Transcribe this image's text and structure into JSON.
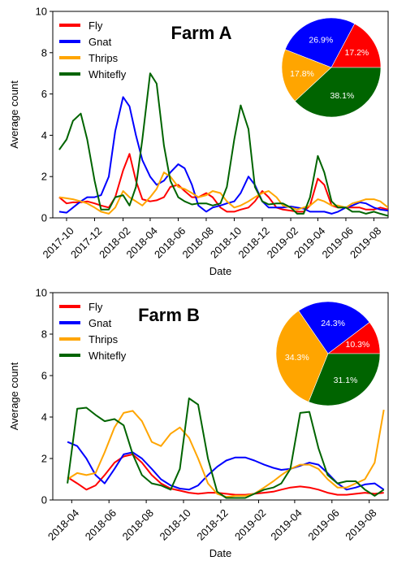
{
  "figure": {
    "colors": {
      "Fly": "#ff0000",
      "Gnat": "#0000ff",
      "Thrips": "#ffa500",
      "Whitefly": "#006400"
    }
  },
  "chart_data": [
    {
      "type": "line",
      "title": "Farm A",
      "xlabel": "Date",
      "ylabel": "Average count",
      "ylim": [
        0,
        10
      ],
      "yticks": [
        0,
        2,
        4,
        6,
        8,
        10
      ],
      "x_start": "2017-09",
      "x_end": "2019-09",
      "xticks": [
        "2017-10",
        "2017-12",
        "2018-02",
        "2018-04",
        "2018-06",
        "2018-08",
        "2018-10",
        "2018-12",
        "2019-02",
        "2019-04",
        "2019-06",
        "2019-08"
      ],
      "legend_position": "top-left",
      "series": [
        {
          "name": "Fly",
          "color": "#ff0000",
          "x": [
            "2017-09-15",
            "2017-10-01",
            "2017-10-15",
            "2017-11-01",
            "2017-11-15",
            "2017-12-01",
            "2017-12-15",
            "2018-01-01",
            "2018-01-15",
            "2018-02-01",
            "2018-02-15",
            "2018-03-01",
            "2018-03-15",
            "2018-04-01",
            "2018-04-15",
            "2018-05-01",
            "2018-05-15",
            "2018-06-01",
            "2018-06-15",
            "2018-07-01",
            "2018-07-15",
            "2018-08-01",
            "2018-08-15",
            "2018-09-01",
            "2018-09-15",
            "2018-10-01",
            "2018-10-15",
            "2018-11-01",
            "2018-11-15",
            "2018-12-01",
            "2018-12-15",
            "2019-01-01",
            "2019-01-15",
            "2019-02-01",
            "2019-02-15",
            "2019-03-01",
            "2019-03-15",
            "2019-04-01",
            "2019-04-15",
            "2019-05-01",
            "2019-05-15",
            "2019-06-01",
            "2019-06-15",
            "2019-07-01",
            "2019-07-15",
            "2019-08-01",
            "2019-08-15",
            "2019-09-01"
          ],
          "y": [
            1.0,
            0.7,
            0.75,
            0.75,
            0.8,
            0.7,
            0.6,
            0.5,
            1.0,
            2.3,
            3.1,
            1.8,
            0.9,
            0.8,
            0.85,
            1.0,
            1.5,
            1.6,
            1.3,
            1.0,
            1.0,
            1.2,
            1.0,
            0.5,
            0.3,
            0.3,
            0.4,
            0.5,
            0.8,
            1.3,
            1.0,
            0.5,
            0.4,
            0.35,
            0.3,
            0.3,
            0.6,
            1.9,
            1.6,
            0.6,
            0.5,
            0.5,
            0.5,
            0.5,
            0.4,
            0.4,
            0.5,
            0.4
          ]
        },
        {
          "name": "Gnat",
          "color": "#0000ff",
          "x": [
            "2017-09-15",
            "2017-10-01",
            "2017-10-15",
            "2017-11-01",
            "2017-11-15",
            "2017-12-01",
            "2017-12-15",
            "2018-01-01",
            "2018-01-15",
            "2018-02-01",
            "2018-02-15",
            "2018-03-01",
            "2018-03-15",
            "2018-04-01",
            "2018-04-15",
            "2018-05-01",
            "2018-05-15",
            "2018-06-01",
            "2018-06-15",
            "2018-07-01",
            "2018-07-15",
            "2018-08-01",
            "2018-08-15",
            "2018-09-01",
            "2018-09-15",
            "2018-10-01",
            "2018-10-15",
            "2018-11-01",
            "2018-11-15",
            "2018-12-01",
            "2018-12-15",
            "2019-01-01",
            "2019-01-15",
            "2019-02-01",
            "2019-02-15",
            "2019-03-01",
            "2019-03-15",
            "2019-04-01",
            "2019-04-15",
            "2019-05-01",
            "2019-05-15",
            "2019-06-01",
            "2019-06-15",
            "2019-07-01",
            "2019-07-15",
            "2019-08-01",
            "2019-08-15",
            "2019-09-01"
          ],
          "y": [
            0.3,
            0.25,
            0.5,
            0.8,
            1.0,
            1.0,
            1.1,
            2.0,
            4.2,
            5.85,
            5.4,
            4.0,
            2.8,
            2.0,
            1.6,
            1.8,
            2.2,
            2.6,
            2.4,
            1.6,
            0.6,
            0.3,
            0.5,
            0.6,
            0.7,
            0.8,
            1.2,
            2.0,
            1.6,
            0.8,
            0.5,
            0.5,
            0.5,
            0.55,
            0.5,
            0.45,
            0.3,
            0.3,
            0.3,
            0.2,
            0.3,
            0.5,
            0.6,
            0.75,
            0.7,
            0.5,
            0.4,
            0.35
          ]
        },
        {
          "name": "Thrips",
          "color": "#ffa500",
          "x": [
            "2017-09-15",
            "2017-10-01",
            "2017-10-15",
            "2017-11-01",
            "2017-11-15",
            "2017-12-01",
            "2017-12-15",
            "2018-01-01",
            "2018-01-15",
            "2018-02-01",
            "2018-02-15",
            "2018-03-01",
            "2018-03-15",
            "2018-04-01",
            "2018-04-15",
            "2018-05-01",
            "2018-05-15",
            "2018-06-01",
            "2018-06-15",
            "2018-07-01",
            "2018-07-15",
            "2018-08-01",
            "2018-08-15",
            "2018-09-01",
            "2018-09-15",
            "2018-10-01",
            "2018-10-15",
            "2018-11-01",
            "2018-11-15",
            "2018-12-01",
            "2018-12-15",
            "2019-01-01",
            "2019-01-15",
            "2019-02-01",
            "2019-02-15",
            "2019-03-01",
            "2019-03-15",
            "2019-04-01",
            "2019-04-15",
            "2019-05-01",
            "2019-05-15",
            "2019-06-01",
            "2019-06-15",
            "2019-07-01",
            "2019-07-15",
            "2019-08-01",
            "2019-08-15",
            "2019-09-01"
          ],
          "y": [
            1.0,
            0.95,
            0.9,
            0.8,
            0.7,
            0.5,
            0.3,
            0.2,
            0.5,
            1.3,
            1.0,
            0.8,
            0.6,
            1.0,
            1.4,
            2.2,
            2.0,
            1.5,
            1.4,
            1.2,
            1.0,
            1.1,
            1.3,
            1.2,
            0.8,
            0.5,
            0.6,
            0.8,
            1.0,
            1.2,
            1.3,
            1.0,
            0.6,
            0.5,
            0.4,
            0.5,
            0.6,
            0.9,
            0.8,
            0.6,
            0.6,
            0.5,
            0.7,
            0.8,
            0.9,
            0.9,
            0.8,
            0.5
          ]
        },
        {
          "name": "Whitefly",
          "color": "#006400",
          "x": [
            "2017-09-15",
            "2017-10-01",
            "2017-10-15",
            "2017-11-01",
            "2017-11-15",
            "2017-12-01",
            "2017-12-15",
            "2018-01-01",
            "2018-01-15",
            "2018-02-01",
            "2018-02-15",
            "2018-03-01",
            "2018-03-15",
            "2018-04-01",
            "2018-04-15",
            "2018-05-01",
            "2018-05-15",
            "2018-06-01",
            "2018-06-15",
            "2018-07-01",
            "2018-07-15",
            "2018-08-01",
            "2018-08-15",
            "2018-09-01",
            "2018-09-15",
            "2018-10-01",
            "2018-10-15",
            "2018-11-01",
            "2018-11-15",
            "2018-12-01",
            "2018-12-15",
            "2019-01-01",
            "2019-01-15",
            "2019-02-01",
            "2019-02-15",
            "2019-03-01",
            "2019-03-15",
            "2019-04-01",
            "2019-04-15",
            "2019-05-01",
            "2019-05-15",
            "2019-06-01",
            "2019-06-15",
            "2019-07-01",
            "2019-07-15",
            "2019-08-01",
            "2019-08-15",
            "2019-09-01"
          ],
          "y": [
            3.3,
            3.8,
            4.7,
            5.05,
            3.8,
            1.8,
            0.4,
            0.4,
            1.0,
            1.1,
            0.6,
            1.5,
            3.8,
            7.0,
            6.5,
            3.5,
            1.8,
            1.0,
            0.8,
            0.65,
            0.7,
            0.7,
            0.6,
            0.7,
            1.5,
            3.8,
            5.45,
            4.3,
            1.5,
            0.8,
            0.65,
            0.7,
            0.7,
            0.5,
            0.2,
            0.2,
            1.0,
            3.0,
            2.2,
            0.8,
            0.5,
            0.5,
            0.3,
            0.3,
            0.2,
            0.3,
            0.2,
            0.1
          ]
        }
      ],
      "pie": {
        "slices": [
          {
            "name": "Fly",
            "value": 17.2,
            "label": "17.2%",
            "color": "#ff0000"
          },
          {
            "name": "Gnat",
            "value": 26.9,
            "label": "26.9%",
            "color": "#0000ff"
          },
          {
            "name": "Thrips",
            "value": 17.8,
            "label": "17.8%",
            "color": "#ffa500"
          },
          {
            "name": "Whitefly",
            "value": 38.1,
            "label": "38.1%",
            "color": "#006400"
          }
        ]
      }
    },
    {
      "type": "line",
      "title": "Farm B",
      "xlabel": "Date",
      "ylabel": "Average count",
      "ylim": [
        0,
        10
      ],
      "yticks": [
        0,
        2,
        4,
        6,
        8,
        10
      ],
      "x_start": "2018-03",
      "x_end": "2019-09",
      "xticks": [
        "2018-04",
        "2018-06",
        "2018-08",
        "2018-10",
        "2018-12",
        "2019-02",
        "2019-04",
        "2019-06",
        "2019-08"
      ],
      "legend_position": "top-left",
      "series": [
        {
          "name": "Fly",
          "color": "#ff0000",
          "x": [
            "2018-03-25",
            "2018-04-10",
            "2018-04-25",
            "2018-05-10",
            "2018-05-25",
            "2018-06-10",
            "2018-06-25",
            "2018-07-10",
            "2018-07-25",
            "2018-08-10",
            "2018-08-25",
            "2018-09-10",
            "2018-09-25",
            "2018-10-10",
            "2018-10-25",
            "2018-11-10",
            "2018-11-25",
            "2018-12-10",
            "2018-12-25",
            "2019-01-10",
            "2019-01-25",
            "2019-02-10",
            "2019-02-25",
            "2019-03-10",
            "2019-03-25",
            "2019-04-10",
            "2019-04-25",
            "2019-05-10",
            "2019-05-25",
            "2019-06-10",
            "2019-06-25",
            "2019-07-10",
            "2019-07-25",
            "2019-08-10",
            "2019-08-25"
          ],
          "y": [
            1.1,
            0.8,
            0.5,
            0.7,
            1.2,
            1.8,
            2.1,
            2.2,
            1.8,
            1.2,
            0.8,
            0.55,
            0.45,
            0.35,
            0.3,
            0.35,
            0.35,
            0.3,
            0.25,
            0.25,
            0.3,
            0.35,
            0.4,
            0.5,
            0.6,
            0.65,
            0.6,
            0.5,
            0.35,
            0.25,
            0.25,
            0.3,
            0.35,
            0.3,
            0.35
          ]
        },
        {
          "name": "Gnat",
          "color": "#0000ff",
          "x": [
            "2018-03-25",
            "2018-04-10",
            "2018-04-25",
            "2018-05-10",
            "2018-05-25",
            "2018-06-10",
            "2018-06-25",
            "2018-07-10",
            "2018-07-25",
            "2018-08-10",
            "2018-08-25",
            "2018-09-10",
            "2018-09-25",
            "2018-10-10",
            "2018-10-25",
            "2018-11-10",
            "2018-11-25",
            "2018-12-10",
            "2018-12-25",
            "2019-01-10",
            "2019-01-25",
            "2019-02-10",
            "2019-02-25",
            "2019-03-10",
            "2019-03-25",
            "2019-04-10",
            "2019-04-25",
            "2019-05-10",
            "2019-05-25",
            "2019-06-10",
            "2019-06-25",
            "2019-07-10",
            "2019-07-25",
            "2019-08-10",
            "2019-08-25"
          ],
          "y": [
            2.8,
            2.6,
            2.0,
            1.2,
            0.8,
            1.5,
            2.2,
            2.3,
            2.0,
            1.5,
            1.0,
            0.7,
            0.55,
            0.5,
            0.7,
            1.2,
            1.6,
            1.9,
            2.05,
            2.05,
            1.9,
            1.7,
            1.55,
            1.45,
            1.5,
            1.65,
            1.8,
            1.7,
            1.3,
            0.8,
            0.5,
            0.6,
            0.75,
            0.8,
            0.5
          ]
        },
        {
          "name": "Thrips",
          "color": "#ffa500",
          "x": [
            "2018-03-25",
            "2018-04-10",
            "2018-04-25",
            "2018-05-10",
            "2018-05-25",
            "2018-06-10",
            "2018-06-25",
            "2018-07-10",
            "2018-07-25",
            "2018-08-10",
            "2018-08-25",
            "2018-09-10",
            "2018-09-25",
            "2018-10-10",
            "2018-10-25",
            "2018-11-10",
            "2018-11-25",
            "2018-12-10",
            "2018-12-25",
            "2019-01-10",
            "2019-01-25",
            "2019-02-10",
            "2019-02-25",
            "2019-03-10",
            "2019-03-25",
            "2019-04-10",
            "2019-04-25",
            "2019-05-10",
            "2019-05-25",
            "2019-06-10",
            "2019-06-25",
            "2019-07-10",
            "2019-07-25",
            "2019-08-10",
            "2019-08-25"
          ],
          "y": [
            1.0,
            1.3,
            1.2,
            1.3,
            2.3,
            3.5,
            4.2,
            4.3,
            3.8,
            2.8,
            2.6,
            3.2,
            3.5,
            3.0,
            2.0,
            0.8,
            0.3,
            0.15,
            0.2,
            0.2,
            0.3,
            0.6,
            0.9,
            1.2,
            1.5,
            1.7,
            1.7,
            1.5,
            1.0,
            0.6,
            0.6,
            0.8,
            1.0,
            1.8,
            4.35
          ]
        },
        {
          "name": "Whitefly",
          "color": "#006400",
          "x": [
            "2018-03-25",
            "2018-04-10",
            "2018-04-25",
            "2018-05-10",
            "2018-05-25",
            "2018-06-10",
            "2018-06-25",
            "2018-07-10",
            "2018-07-25",
            "2018-08-10",
            "2018-08-25",
            "2018-09-10",
            "2018-09-25",
            "2018-10-10",
            "2018-10-25",
            "2018-11-10",
            "2018-11-25",
            "2018-12-10",
            "2018-12-25",
            "2019-01-10",
            "2019-01-25",
            "2019-02-10",
            "2019-02-25",
            "2019-03-10",
            "2019-03-25",
            "2019-04-10",
            "2019-04-25",
            "2019-05-10",
            "2019-05-25",
            "2019-06-10",
            "2019-06-25",
            "2019-07-10",
            "2019-07-25",
            "2019-08-10",
            "2019-08-25"
          ],
          "y": [
            0.8,
            4.4,
            4.45,
            4.1,
            3.8,
            3.9,
            3.6,
            2.2,
            1.2,
            0.8,
            0.7,
            0.5,
            1.5,
            4.9,
            4.6,
            2.0,
            0.4,
            0.1,
            0.1,
            0.1,
            0.3,
            0.5,
            0.6,
            0.8,
            1.5,
            4.2,
            4.25,
            2.5,
            1.2,
            0.8,
            0.9,
            0.9,
            0.5,
            0.2,
            0.5
          ]
        }
      ],
      "pie": {
        "slices": [
          {
            "name": "Fly",
            "value": 10.3,
            "label": "10.3%",
            "color": "#ff0000"
          },
          {
            "name": "Gnat",
            "value": 24.3,
            "label": "24.3%",
            "color": "#0000ff"
          },
          {
            "name": "Thrips",
            "value": 34.3,
            "label": "34.3%",
            "color": "#ffa500"
          },
          {
            "name": "Whitefly",
            "value": 31.1,
            "label": "31.1%",
            "color": "#006400"
          }
        ]
      }
    }
  ]
}
